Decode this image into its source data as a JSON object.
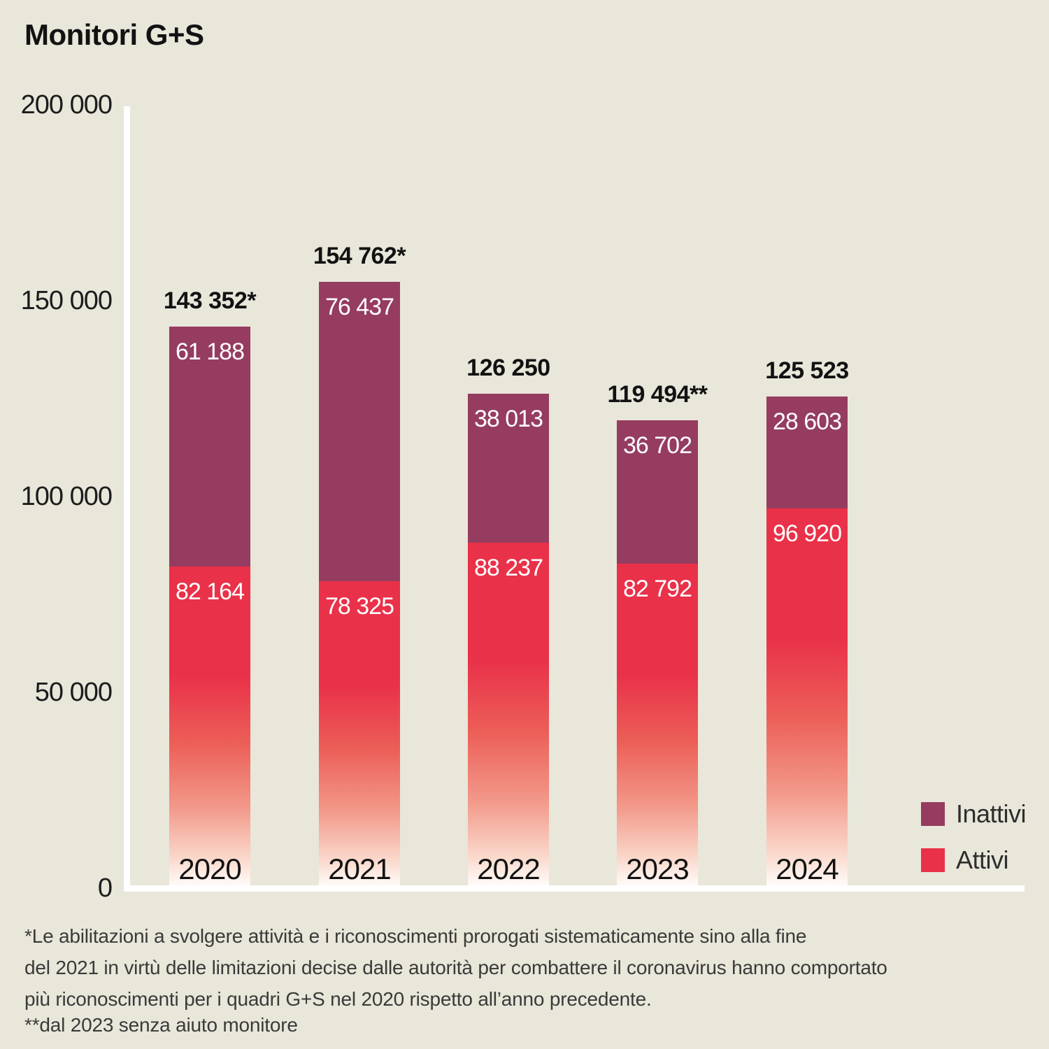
{
  "title": "Monitori G+S",
  "chart_data": {
    "type": "bar",
    "stacked": true,
    "title": "Monitori G+S",
    "categories": [
      "2020",
      "2021",
      "2022",
      "2023",
      "2024"
    ],
    "series": [
      {
        "name": "Inattivi",
        "color": "#953c60",
        "values": [
          61188,
          76437,
          38013,
          36702,
          28603
        ],
        "labels": [
          "61 188",
          "76 437",
          "38 013",
          "36 702",
          "28 603"
        ]
      },
      {
        "name": "Attivi",
        "color": "#e93149",
        "values": [
          82164,
          78325,
          88237,
          82792,
          96920
        ],
        "labels": [
          "82 164",
          "78 325",
          "88 237",
          "82 792",
          "96 920"
        ]
      }
    ],
    "totals": [
      143352,
      154762,
      126250,
      119494,
      125523
    ],
    "total_labels": [
      "143 352*",
      "154 762*",
      "126 250",
      "119 494**",
      "125 523"
    ],
    "y_ticks": [
      {
        "label": "200 000",
        "value": 200000
      },
      {
        "label": "150 000",
        "value": 150000
      },
      {
        "label": "100 000",
        "value": 100000
      },
      {
        "label": "50 000",
        "value": 50000
      },
      {
        "label": "0",
        "value": 0
      }
    ],
    "ylim": [
      0,
      200000
    ],
    "xlabel": "",
    "ylabel": "",
    "grid": false,
    "legend_position": "right-bottom",
    "background": "#e9e6da",
    "attivi_gradient_bottom": "#ffffff",
    "axis_color": "#ffffff"
  },
  "footnotes": {
    "note1": "*Le abilitazioni a svolgere attività e i riconoscimenti prorogati sistematicamente sino alla fine\ndel 2021 in virtù delle limitazioni decise dalle autorità per combattere il coronavirus hanno comportato\npiù riconoscimenti per i quadri G+S nel 2020 rispetto all’anno precedente.",
    "note2": "**dal 2023 senza aiuto monitore"
  }
}
